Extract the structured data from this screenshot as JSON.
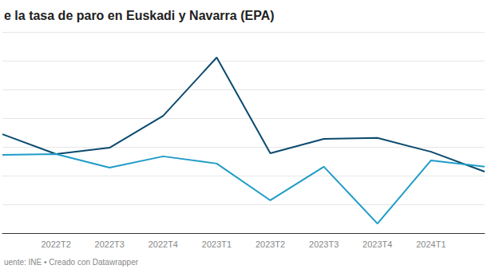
{
  "chart_data": {
    "type": "line",
    "title": "e la tasa de paro en Euskadi y Navarra (EPA)",
    "source": "uente: INE • Creado con Datawrapper",
    "categories": [
      null,
      "2022T2",
      "2022T3",
      "2022T4",
      "2023T1",
      "2023T2",
      "2023T3",
      "2023T4",
      "2024T1",
      null
    ],
    "series": [
      {
        "color": "#0b4a6e",
        "values": [
          9.44,
          8.75,
          8.97,
          10.08,
          12.11,
          8.78,
          9.28,
          9.31,
          8.83,
          8.14
        ]
      },
      {
        "color": "#1f9cc7",
        "values": [
          8.72,
          8.75,
          8.28,
          8.67,
          8.42,
          7.14,
          8.31,
          6.33,
          8.53,
          8.31
        ]
      }
    ],
    "ylim": [
      6,
      13
    ],
    "yticks": [
      6,
      7,
      8,
      9,
      10,
      11,
      12,
      13
    ],
    "grid": true,
    "tick_labels": "x"
  }
}
